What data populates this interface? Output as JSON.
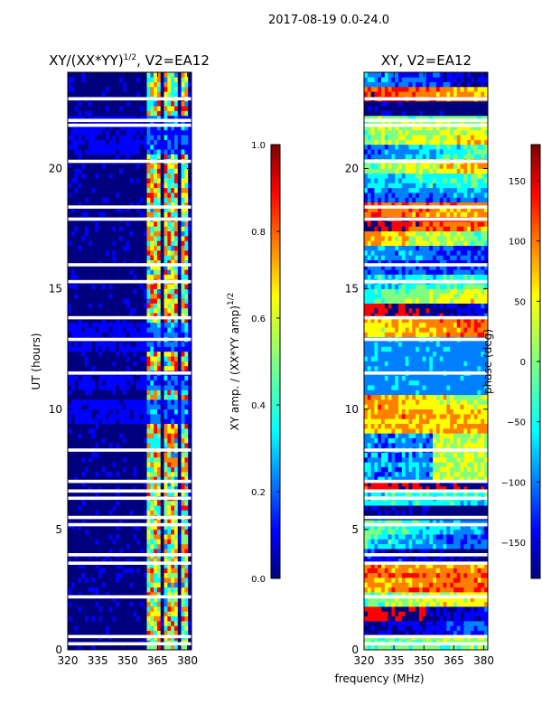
{
  "suptitle": "2017-08-19 0.0-24.0",
  "colors": {
    "jet": [
      "#00007f",
      "#0000ff",
      "#007fff",
      "#00ffff",
      "#7fff7f",
      "#ffff00",
      "#ff7f00",
      "#ff0000",
      "#7f0000"
    ],
    "gap": "#ffffff",
    "axis": "#000000"
  },
  "chart_data": [
    {
      "type": "heatmap",
      "title": "XY/(XX*YY)^1/2, V2=EA12",
      "title_main": "XY/(XX*YY)",
      "title_exp": "1/2",
      "title_rest": ", V2=EA12",
      "xlabel": "",
      "ylabel": "UT (hours)",
      "xlim": [
        320,
        382
      ],
      "ylim": [
        0,
        24
      ],
      "xticks": [
        320,
        335,
        350,
        365,
        380
      ],
      "yticks": [
        0,
        5,
        10,
        15,
        20
      ],
      "colorbar": {
        "label": "XY amp. / (XX*YY amp)^1/2",
        "label_main": "XY amp. / (XX*YY amp)",
        "label_exp": "1/2",
        "range": [
          0.0,
          1.0
        ],
        "ticks": [
          0.0,
          0.2,
          0.4,
          0.6,
          0.8,
          1.0
        ],
        "tick_labels": [
          "0.0",
          "0.2",
          "0.4",
          "0.6",
          "0.8",
          "1.0"
        ]
      },
      "bright_bands_mhz": [
        [
          360,
          367
        ],
        [
          368,
          375
        ],
        [
          376,
          381
        ]
      ],
      "gap_hours": [
        0.25,
        0.55,
        2.2,
        3.6,
        3.95,
        5.2,
        5.5,
        6.3,
        6.6,
        7.0,
        8.3,
        11.5,
        12.9,
        13.8,
        15.3,
        16.0,
        17.9,
        18.4,
        20.3,
        21.8,
        22.0,
        22.9
      ]
    },
    {
      "type": "heatmap",
      "title": "XY, V2=EA12",
      "xlabel": "frequency (MHz)",
      "ylabel": "",
      "xlim": [
        320,
        382
      ],
      "ylim": [
        0,
        24
      ],
      "xticks": [
        320,
        335,
        350,
        365,
        380
      ],
      "yticks": [
        0,
        5,
        10,
        15,
        20
      ],
      "colorbar": {
        "label": "phase (deg)",
        "range": [
          -180,
          180
        ],
        "ticks": [
          -150,
          -100,
          -50,
          0,
          50,
          100,
          150
        ],
        "tick_labels": [
          "−150",
          "−100",
          "−50",
          "0",
          "50",
          "100",
          "150"
        ]
      },
      "gap_hours": [
        0.25,
        0.55,
        2.2,
        3.6,
        3.95,
        5.2,
        5.5,
        6.3,
        6.6,
        7.0,
        8.3,
        11.5,
        12.9,
        13.8,
        15.3,
        16.0,
        17.9,
        18.4,
        20.3,
        21.8,
        22.0,
        22.9
      ]
    }
  ]
}
